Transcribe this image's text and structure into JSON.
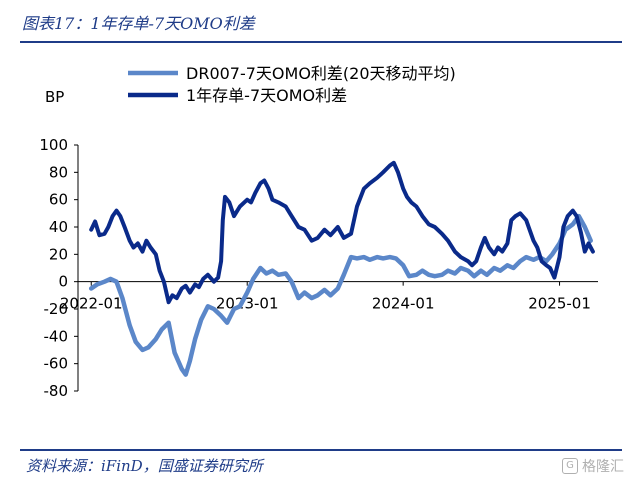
{
  "header": {
    "title": "图表17：1年存单-7天OMO利差"
  },
  "footer": {
    "source": "资料来源：iFinD，国盛证券研究所"
  },
  "watermark": {
    "text": "格隆汇",
    "icon": "watermark-logo-icon"
  },
  "chart_data": {
    "type": "line",
    "title": "图表17：1年存单-7天OMO利差",
    "ylabel": "BP",
    "ylim": [
      -80,
      100
    ],
    "yticks": [
      -80,
      -60,
      -40,
      -20,
      0,
      20,
      40,
      60,
      80,
      100
    ],
    "xlim": [
      "2021-12-01",
      "2025-04-01"
    ],
    "xticks": [
      {
        "label": "2022-01",
        "x": "2022-01-01"
      },
      {
        "label": "2023-01",
        "x": "2023-01-01"
      },
      {
        "label": "2024-01",
        "x": "2024-01-01"
      },
      {
        "label": "2025-01",
        "x": "2025-01-01"
      }
    ],
    "grid": false,
    "legend": "top-center",
    "series": [
      {
        "name": "DR007-7天OMO利差(20天移动平均)",
        "color": "#5b87c9",
        "points": [
          [
            "2022-01-01",
            -5
          ],
          [
            "2022-01-15",
            -2
          ],
          [
            "2022-02-01",
            0
          ],
          [
            "2022-02-15",
            2
          ],
          [
            "2022-03-01",
            0
          ],
          [
            "2022-03-15",
            -12
          ],
          [
            "2022-04-01",
            -32
          ],
          [
            "2022-04-15",
            -44
          ],
          [
            "2022-05-01",
            -50
          ],
          [
            "2022-05-15",
            -48
          ],
          [
            "2022-06-01",
            -42
          ],
          [
            "2022-06-15",
            -35
          ],
          [
            "2022-07-01",
            -30
          ],
          [
            "2022-07-15",
            -52
          ],
          [
            "2022-08-01",
            -64
          ],
          [
            "2022-08-10",
            -68
          ],
          [
            "2022-08-20",
            -58
          ],
          [
            "2022-09-01",
            -42
          ],
          [
            "2022-09-15",
            -28
          ],
          [
            "2022-10-01",
            -18
          ],
          [
            "2022-10-15",
            -20
          ],
          [
            "2022-11-01",
            -25
          ],
          [
            "2022-11-15",
            -30
          ],
          [
            "2022-12-01",
            -20
          ],
          [
            "2022-12-15",
            -18
          ],
          [
            "2023-01-01",
            -8
          ],
          [
            "2023-01-15",
            2
          ],
          [
            "2023-02-01",
            10
          ],
          [
            "2023-02-15",
            6
          ],
          [
            "2023-03-01",
            8
          ],
          [
            "2023-03-15",
            5
          ],
          [
            "2023-04-01",
            6
          ],
          [
            "2023-04-15",
            0
          ],
          [
            "2023-05-01",
            -12
          ],
          [
            "2023-05-15",
            -8
          ],
          [
            "2023-06-01",
            -12
          ],
          [
            "2023-06-15",
            -10
          ],
          [
            "2023-07-01",
            -6
          ],
          [
            "2023-07-15",
            -10
          ],
          [
            "2023-08-01",
            -5
          ],
          [
            "2023-08-15",
            5
          ],
          [
            "2023-09-01",
            18
          ],
          [
            "2023-09-15",
            17
          ],
          [
            "2023-10-01",
            18
          ],
          [
            "2023-10-15",
            16
          ],
          [
            "2023-11-01",
            18
          ],
          [
            "2023-11-15",
            17
          ],
          [
            "2023-12-01",
            18
          ],
          [
            "2023-12-15",
            17
          ],
          [
            "2024-01-01",
            12
          ],
          [
            "2024-01-15",
            4
          ],
          [
            "2024-02-01",
            5
          ],
          [
            "2024-02-15",
            8
          ],
          [
            "2024-03-01",
            5
          ],
          [
            "2024-03-15",
            4
          ],
          [
            "2024-04-01",
            5
          ],
          [
            "2024-04-15",
            8
          ],
          [
            "2024-05-01",
            6
          ],
          [
            "2024-05-15",
            10
          ],
          [
            "2024-06-01",
            8
          ],
          [
            "2024-06-15",
            4
          ],
          [
            "2024-07-01",
            8
          ],
          [
            "2024-07-15",
            5
          ],
          [
            "2024-08-01",
            10
          ],
          [
            "2024-08-15",
            8
          ],
          [
            "2024-09-01",
            12
          ],
          [
            "2024-09-15",
            10
          ],
          [
            "2024-10-01",
            15
          ],
          [
            "2024-10-15",
            18
          ],
          [
            "2024-11-01",
            16
          ],
          [
            "2024-11-15",
            18
          ],
          [
            "2024-12-01",
            15
          ],
          [
            "2024-12-15",
            20
          ],
          [
            "2025-01-01",
            28
          ],
          [
            "2025-01-15",
            38
          ],
          [
            "2025-02-01",
            42
          ],
          [
            "2025-02-15",
            48
          ],
          [
            "2025-03-01",
            40
          ],
          [
            "2025-03-15",
            30
          ]
        ]
      },
      {
        "name": "1年存单-7天OMO利差",
        "color": "#0a2a8a",
        "points": [
          [
            "2022-01-01",
            38
          ],
          [
            "2022-01-10",
            44
          ],
          [
            "2022-01-20",
            34
          ],
          [
            "2022-02-01",
            35
          ],
          [
            "2022-02-10",
            40
          ],
          [
            "2022-02-20",
            48
          ],
          [
            "2022-03-01",
            52
          ],
          [
            "2022-03-10",
            48
          ],
          [
            "2022-03-20",
            40
          ],
          [
            "2022-04-01",
            30
          ],
          [
            "2022-04-10",
            25
          ],
          [
            "2022-04-20",
            28
          ],
          [
            "2022-05-01",
            22
          ],
          [
            "2022-05-10",
            30
          ],
          [
            "2022-05-20",
            25
          ],
          [
            "2022-06-01",
            20
          ],
          [
            "2022-06-10",
            8
          ],
          [
            "2022-06-20",
            0
          ],
          [
            "2022-07-01",
            -15
          ],
          [
            "2022-07-10",
            -10
          ],
          [
            "2022-07-20",
            -12
          ],
          [
            "2022-08-01",
            -5
          ],
          [
            "2022-08-10",
            -3
          ],
          [
            "2022-08-20",
            -8
          ],
          [
            "2022-09-01",
            -2
          ],
          [
            "2022-09-10",
            -4
          ],
          [
            "2022-09-20",
            2
          ],
          [
            "2022-10-01",
            5
          ],
          [
            "2022-10-15",
            0
          ],
          [
            "2022-10-25",
            3
          ],
          [
            "2022-11-01",
            15
          ],
          [
            "2022-11-05",
            45
          ],
          [
            "2022-11-10",
            62
          ],
          [
            "2022-11-20",
            58
          ],
          [
            "2022-12-01",
            48
          ],
          [
            "2022-12-15",
            55
          ],
          [
            "2023-01-01",
            60
          ],
          [
            "2023-01-10",
            58
          ],
          [
            "2023-01-20",
            65
          ],
          [
            "2023-02-01",
            72
          ],
          [
            "2023-02-10",
            74
          ],
          [
            "2023-02-20",
            68
          ],
          [
            "2023-03-01",
            60
          ],
          [
            "2023-03-15",
            58
          ],
          [
            "2023-04-01",
            55
          ],
          [
            "2023-04-15",
            48
          ],
          [
            "2023-05-01",
            40
          ],
          [
            "2023-05-15",
            38
          ],
          [
            "2023-06-01",
            30
          ],
          [
            "2023-06-15",
            32
          ],
          [
            "2023-07-01",
            38
          ],
          [
            "2023-07-15",
            34
          ],
          [
            "2023-08-01",
            40
          ],
          [
            "2023-08-15",
            32
          ],
          [
            "2023-09-01",
            35
          ],
          [
            "2023-09-15",
            55
          ],
          [
            "2023-10-01",
            68
          ],
          [
            "2023-10-15",
            72
          ],
          [
            "2023-11-01",
            76
          ],
          [
            "2023-11-15",
            80
          ],
          [
            "2023-12-01",
            85
          ],
          [
            "2023-12-10",
            87
          ],
          [
            "2023-12-20",
            80
          ],
          [
            "2024-01-01",
            68
          ],
          [
            "2024-01-10",
            62
          ],
          [
            "2024-01-20",
            58
          ],
          [
            "2024-02-01",
            55
          ],
          [
            "2024-02-15",
            48
          ],
          [
            "2024-03-01",
            42
          ],
          [
            "2024-03-15",
            40
          ],
          [
            "2024-04-01",
            35
          ],
          [
            "2024-04-15",
            30
          ],
          [
            "2024-05-01",
            22
          ],
          [
            "2024-05-15",
            18
          ],
          [
            "2024-06-01",
            15
          ],
          [
            "2024-06-10",
            12
          ],
          [
            "2024-06-20",
            15
          ],
          [
            "2024-07-01",
            25
          ],
          [
            "2024-07-10",
            32
          ],
          [
            "2024-07-20",
            25
          ],
          [
            "2024-08-01",
            20
          ],
          [
            "2024-08-10",
            25
          ],
          [
            "2024-08-20",
            22
          ],
          [
            "2024-09-01",
            28
          ],
          [
            "2024-09-10",
            45
          ],
          [
            "2024-09-20",
            48
          ],
          [
            "2024-10-01",
            50
          ],
          [
            "2024-10-15",
            45
          ],
          [
            "2024-11-01",
            30
          ],
          [
            "2024-11-10",
            25
          ],
          [
            "2024-11-20",
            15
          ],
          [
            "2024-12-01",
            12
          ],
          [
            "2024-12-10",
            10
          ],
          [
            "2024-12-20",
            3
          ],
          [
            "2025-01-01",
            18
          ],
          [
            "2025-01-10",
            40
          ],
          [
            "2025-01-20",
            48
          ],
          [
            "2025-02-01",
            52
          ],
          [
            "2025-02-10",
            48
          ],
          [
            "2025-02-20",
            36
          ],
          [
            "2025-03-01",
            22
          ],
          [
            "2025-03-10",
            28
          ],
          [
            "2025-03-20",
            22
          ]
        ]
      }
    ]
  }
}
